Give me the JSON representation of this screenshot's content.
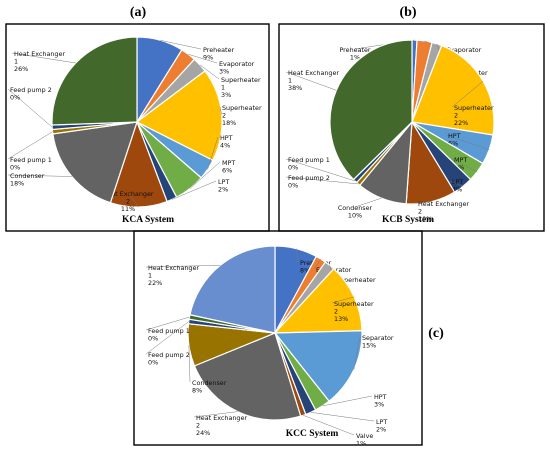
{
  "palette": [
    "#4472C4",
    "#ED7D31",
    "#A5A5A5",
    "#FFC000",
    "#5B9BD5",
    "#70AD47",
    "#264478",
    "#9E480E",
    "#636363",
    "#997300",
    "#43682B",
    "#698ED0",
    "#F1975A"
  ],
  "chart_data": [
    {
      "type": "pie",
      "panel": "(a)",
      "title": "KCA System",
      "slices": [
        {
          "label": "Preheater",
          "value": 9,
          "pct_label": "9%",
          "color": "#4472C4"
        },
        {
          "label": "Evaporator",
          "value": 3,
          "pct_label": "3%",
          "color": "#ED7D31"
        },
        {
          "label": "Superheater 1",
          "value": 3,
          "pct_label": "3%",
          "color": "#A5A5A5"
        },
        {
          "label": "Superheater 2",
          "value": 18,
          "pct_label": "18%",
          "color": "#FFC000"
        },
        {
          "label": "HPT",
          "value": 4,
          "pct_label": "4%",
          "color": "#5B9BD5"
        },
        {
          "label": "MPT",
          "value": 6,
          "pct_label": "6%",
          "color": "#70AD47"
        },
        {
          "label": "LPT",
          "value": 2,
          "pct_label": "2%",
          "color": "#264478"
        },
        {
          "label": "Heat Exchanger 2",
          "value": 11,
          "pct_label": "11%",
          "color": "#9E480E"
        },
        {
          "label": "Condenser",
          "value": 18,
          "pct_label": "18%",
          "color": "#636363"
        },
        {
          "label": "Feed pump 1",
          "value": 0,
          "pct_label": "0%",
          "color": "#997300"
        },
        {
          "label": "Feed pump 2",
          "value": 0,
          "pct_label": "0%",
          "color": "#264478"
        },
        {
          "label": "Heat Exchanger 1",
          "value": 26,
          "pct_label": "26%",
          "color": "#43682B"
        }
      ]
    },
    {
      "type": "pie",
      "panel": "(b)",
      "title": "KCB System",
      "slices": [
        {
          "label": "Preheater",
          "value": 1,
          "pct_label": "1%",
          "color": "#4472C4"
        },
        {
          "label": "Evaporator",
          "value": 3,
          "pct_label": "3%",
          "color": "#ED7D31"
        },
        {
          "label": "Superheater 1",
          "value": 2,
          "pct_label": "2%",
          "color": "#A5A5A5"
        },
        {
          "label": "Superheater 2",
          "value": 22,
          "pct_label": "22%",
          "color": "#FFC000"
        },
        {
          "label": "HPT",
          "value": 6,
          "pct_label": "6%",
          "color": "#5B9BD5"
        },
        {
          "label": "MPT",
          "value": 4,
          "pct_label": "4%",
          "color": "#70AD47"
        },
        {
          "label": "LPT",
          "value": 4,
          "pct_label": "4%",
          "color": "#264478"
        },
        {
          "label": "Heat Exchanger 2",
          "value": 10,
          "pct_label": "10%",
          "color": "#9E480E"
        },
        {
          "label": "Condenser",
          "value": 10,
          "pct_label": "10%",
          "color": "#636363"
        },
        {
          "label": "Feed pump 2",
          "value": 0,
          "pct_label": "0%",
          "color": "#997300"
        },
        {
          "label": "Feed pump 1",
          "value": 0,
          "pct_label": "0%",
          "color": "#264478"
        },
        {
          "label": "Heat Exchanger 1",
          "value": 38,
          "pct_label": "38%",
          "color": "#43682B"
        }
      ]
    },
    {
      "type": "pie",
      "panel": "(c)",
      "title": "KCC System",
      "slices": [
        {
          "label": "Preheater",
          "value": 8,
          "pct_label": "8%",
          "color": "#4472C4"
        },
        {
          "label": "Evaporator",
          "value": 2,
          "pct_label": "2%",
          "color": "#ED7D31"
        },
        {
          "label": "Superheater 1",
          "value": 2,
          "pct_label": "2%",
          "color": "#A5A5A5"
        },
        {
          "label": "Superheater 2",
          "value": 13,
          "pct_label": "13%",
          "color": "#FFC000"
        },
        {
          "label": "Separator",
          "value": 15,
          "pct_label": "15%",
          "color": "#5B9BD5"
        },
        {
          "label": "HPT",
          "value": 3,
          "pct_label": "3%",
          "color": "#70AD47"
        },
        {
          "label": "LPT",
          "value": 2,
          "pct_label": "2%",
          "color": "#264478"
        },
        {
          "label": "Valve",
          "value": 1,
          "pct_label": "1%",
          "color": "#9E480E"
        },
        {
          "label": "Heat Exchanger 2",
          "value": 24,
          "pct_label": "24%",
          "color": "#636363"
        },
        {
          "label": "Condenser",
          "value": 8,
          "pct_label": "8%",
          "color": "#997300"
        },
        {
          "label": "Feed pump 2",
          "value": 0,
          "pct_label": "0%",
          "color": "#264478"
        },
        {
          "label": "Feed pump 1",
          "value": 0,
          "pct_label": "0%",
          "color": "#43682B"
        },
        {
          "label": "Heat Exchanger 1",
          "value": 22,
          "pct_label": "22%",
          "color": "#698ED0"
        }
      ]
    }
  ]
}
